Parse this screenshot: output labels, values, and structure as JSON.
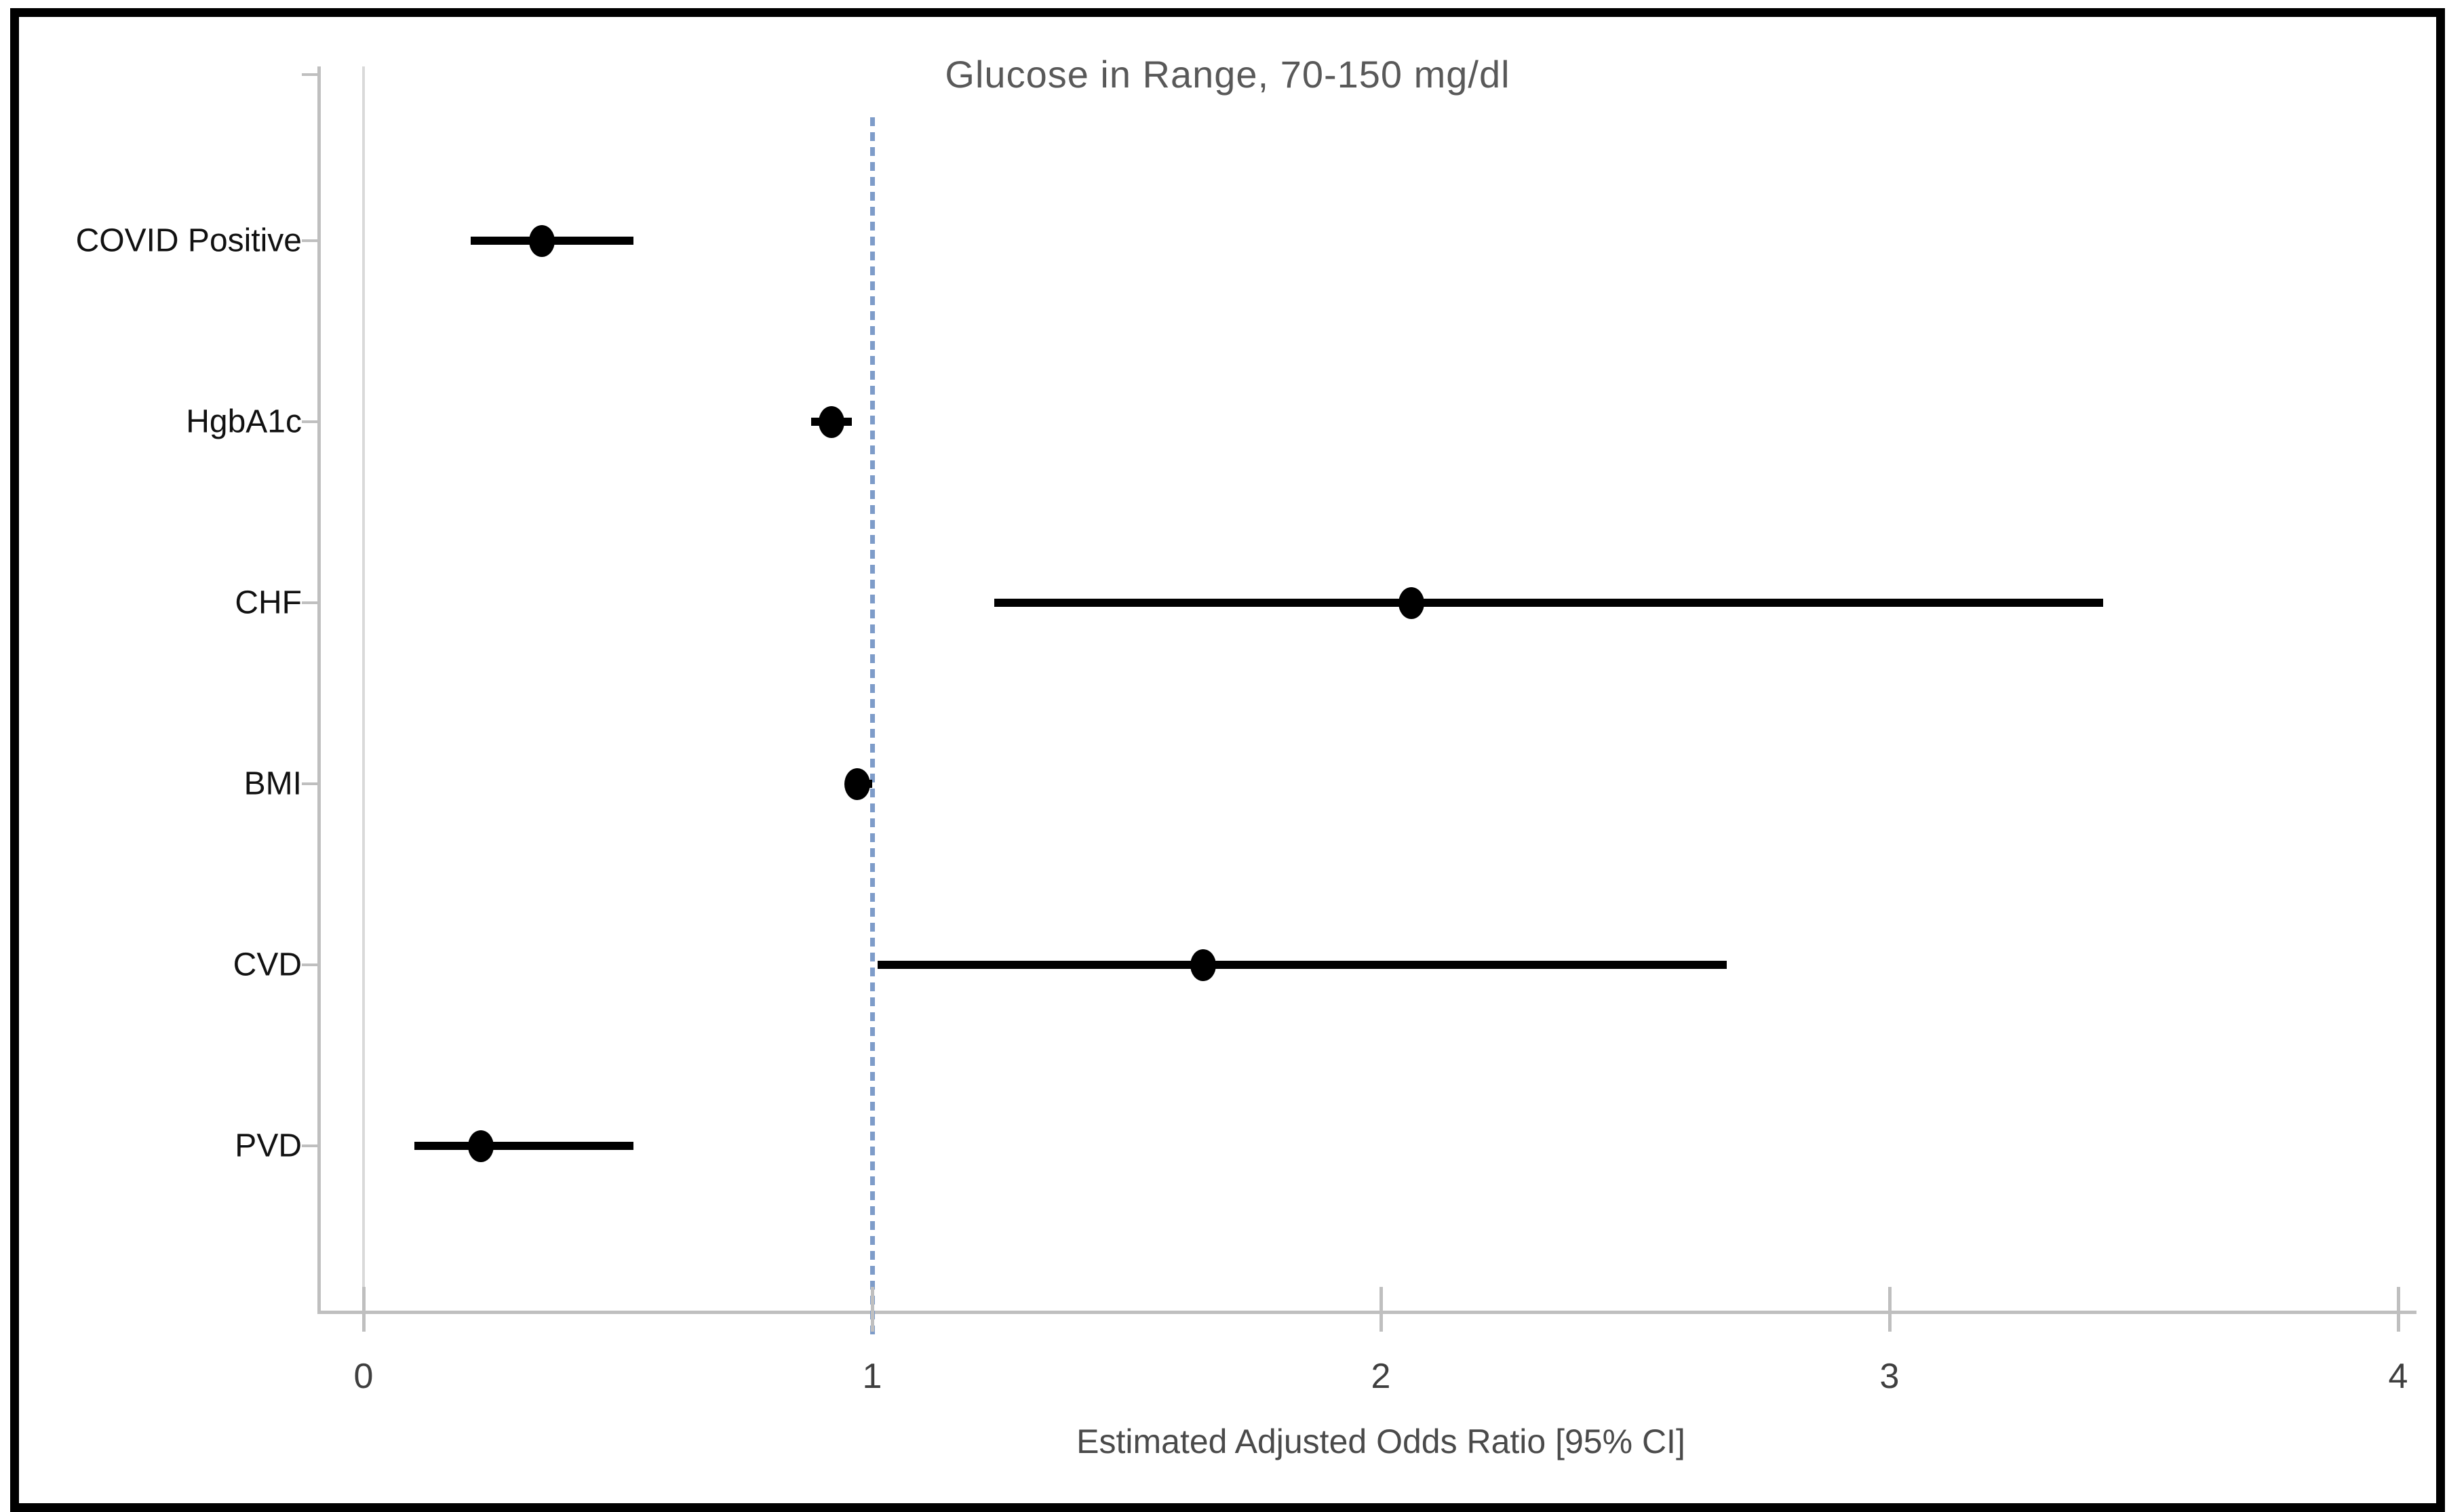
{
  "chart_data": {
    "type": "scatter",
    "subtype": "forest-plot",
    "title": "Glucose in Range, 70-150 mg/dl",
    "xlabel": "Estimated Adjusted Odds Ratio [95% CI]",
    "categories": [
      "COVID Positive",
      "HgbA1c",
      "CHF",
      "BMI",
      "CVD",
      "PVD"
    ],
    "points": [
      {
        "label": "COVID Positive",
        "odds_ratio": 0.35,
        "ci_low": 0.21,
        "ci_high": 0.53
      },
      {
        "label": "HgbA1c",
        "odds_ratio": 0.92,
        "ci_low": 0.88,
        "ci_high": 0.96
      },
      {
        "label": "CHF",
        "odds_ratio": 2.06,
        "ci_low": 1.24,
        "ci_high": 3.42
      },
      {
        "label": "BMI",
        "odds_ratio": 0.97,
        "ci_low": 0.95,
        "ci_high": 1.0
      },
      {
        "label": "CVD",
        "odds_ratio": 1.65,
        "ci_low": 1.01,
        "ci_high": 2.68
      },
      {
        "label": "PVD",
        "odds_ratio": 0.23,
        "ci_low": 0.1,
        "ci_high": 0.53
      }
    ],
    "x_ticks": [
      "0",
      "1",
      "2",
      "3",
      "4"
    ],
    "x_tick_values": [
      0,
      1,
      2,
      3,
      4
    ],
    "xlim": [
      0,
      4
    ],
    "reference_line": 1,
    "grid": false,
    "legend": false,
    "colors": {
      "marker": "#000000",
      "reference_line": "#7e9cc9",
      "axis": "#bfbfbf",
      "title_text": "#595959",
      "axis_label_text": "#4a4a4a",
      "tick_text": "#3f3f3f",
      "category_text": "#111111",
      "figure_border": "#000000"
    }
  }
}
